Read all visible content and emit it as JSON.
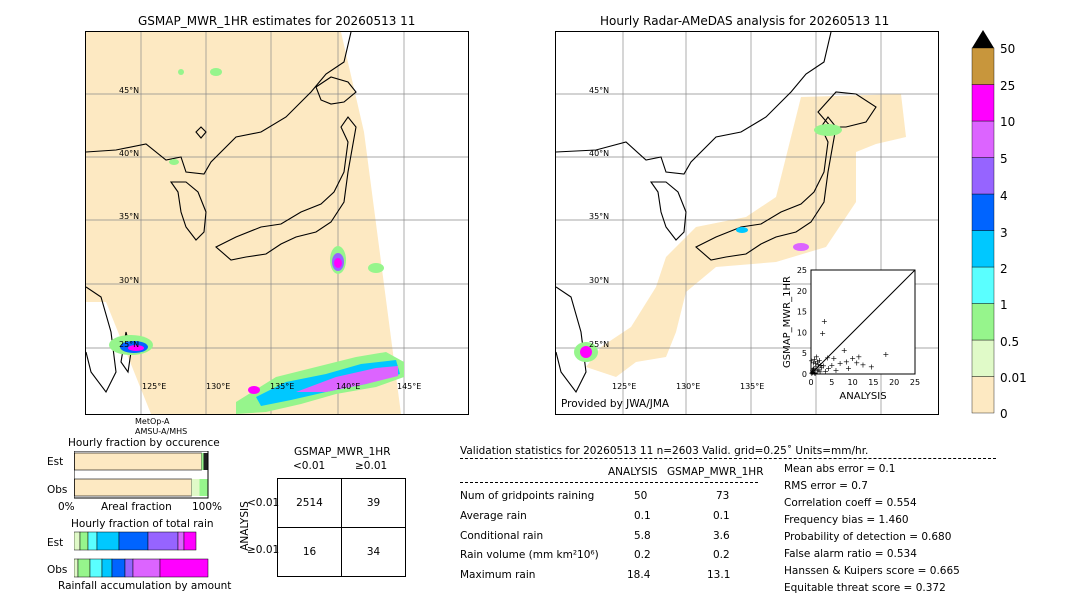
{
  "left_map": {
    "title": "GSMAP_MWR_1HR estimates for 20260513 11",
    "lat_labels": [
      "45°N",
      "40°N",
      "35°N",
      "30°N",
      "25°N"
    ],
    "lon_labels": [
      "125°E",
      "130°E",
      "135°E",
      "140°E",
      "145°E"
    ],
    "satellite": "MetOp-A",
    "sensor": "AMSU-A/MHS"
  },
  "right_map": {
    "title": "Hourly Radar-AMeDAS analysis for 20260513 11",
    "lat_labels": [
      "45°N",
      "40°N",
      "35°N",
      "30°N",
      "25°N"
    ],
    "lon_labels": [
      "125°E",
      "130°E",
      "135°E"
    ],
    "credit": "Provided by JWA/JMA"
  },
  "colorbar": {
    "labels": [
      "0",
      "0.01",
      "0.5",
      "1",
      "2",
      "3",
      "4",
      "5",
      "10",
      "25",
      "50"
    ],
    "colors": [
      "#fde9c2",
      "#e0fac8",
      "#96f58c",
      "#5affff",
      "#00c8ff",
      "#0064ff",
      "#9664ff",
      "#dc64ff",
      "#ff00ff",
      "#c8963c"
    ],
    "top_color": "#000000"
  },
  "fraction_occurrence": {
    "title": "Hourly fraction by occurence",
    "rows": [
      "Est",
      "Obs"
    ],
    "axis_left": "0%",
    "axis_mid": "Areal fraction",
    "axis_right": "100%"
  },
  "fraction_total": {
    "title": "Hourly fraction of total rain",
    "rows": [
      "Est",
      "Obs"
    ],
    "axis_label": "Rainfall accumulation by amount"
  },
  "contingency": {
    "title": "GSMAP_MWR_1HR",
    "col_labels": [
      "<0.01",
      "≥0.01"
    ],
    "row_axis": "ANALYSIS",
    "row_labels": [
      "<0.01",
      "≥0.01"
    ],
    "cells": [
      [
        "2514",
        "39"
      ],
      [
        "16",
        "34"
      ]
    ]
  },
  "validation": {
    "header": "Validation statistics for 20260513 11  n=2603 Valid. grid=0.25˚ Units=mm/hr.",
    "col_analysis": "ANALYSIS",
    "col_gsmap": "GSMAP_MWR_1HR",
    "rows": [
      {
        "label": "Num of gridpoints raining",
        "analysis": "50",
        "gsmap": "73"
      },
      {
        "label": "Average rain",
        "analysis": "0.1",
        "gsmap": "0.1"
      },
      {
        "label": "Conditional rain",
        "analysis": "5.8",
        "gsmap": "3.6"
      },
      {
        "label": "Rain volume (mm km²10⁶)",
        "analysis": "0.2",
        "gsmap": "0.2"
      },
      {
        "label": "Maximum rain",
        "analysis": "18.4",
        "gsmap": "13.1"
      }
    ],
    "scores": [
      "Mean abs error =    0.1",
      "RMS error =    0.7",
      "Correlation coeff =  0.554",
      "Frequency bias =  1.460",
      "Probability of detection =  0.680",
      "False alarm ratio =  0.534",
      "Hanssen & Kuipers score =  0.665",
      "Equitable threat score =  0.372"
    ]
  },
  "chart_data": {
    "type": "scatter",
    "xlabel": "ANALYSIS",
    "ylabel": "GSMAP_MWR_1HR",
    "xlim": [
      0,
      25
    ],
    "ylim": [
      0,
      25
    ],
    "ticks": [
      "0",
      "5",
      "10",
      "15",
      "20",
      "25"
    ],
    "points": [
      [
        0.3,
        0.5
      ],
      [
        0.5,
        1.2
      ],
      [
        0.6,
        2.8
      ],
      [
        0.8,
        3.6
      ],
      [
        1.0,
        0.3
      ],
      [
        1.2,
        1.8
      ],
      [
        1.3,
        4.2
      ],
      [
        1.5,
        0.8
      ],
      [
        1.7,
        2.4
      ],
      [
        2.0,
        3.4
      ],
      [
        2.2,
        0.6
      ],
      [
        2.5,
        1.6
      ],
      [
        2.8,
        9.8
      ],
      [
        3.0,
        2.0
      ],
      [
        3.2,
        12.8
      ],
      [
        3.5,
        0.7
      ],
      [
        4.0,
        4.0
      ],
      [
        4.2,
        1.4
      ],
      [
        5.0,
        2.2
      ],
      [
        5.5,
        3.8
      ],
      [
        6.0,
        1.0
      ],
      [
        7.0,
        2.6
      ],
      [
        8.0,
        5.8
      ],
      [
        8.5,
        3.0
      ],
      [
        9.0,
        1.5
      ],
      [
        10.0,
        3.8
      ],
      [
        11.0,
        2.8
      ],
      [
        11.5,
        4.2
      ],
      [
        12.5,
        2.3
      ],
      [
        14.5,
        1.8
      ],
      [
        18.0,
        4.8
      ],
      [
        0.2,
        0.2
      ],
      [
        0.4,
        0.9
      ],
      [
        0.7,
        1.5
      ],
      [
        0.9,
        0.4
      ],
      [
        1.1,
        2.6
      ],
      [
        1.6,
        3.0
      ],
      [
        1.9,
        1.1
      ],
      [
        2.3,
        2.2
      ],
      [
        0.1,
        3.2
      ]
    ]
  }
}
